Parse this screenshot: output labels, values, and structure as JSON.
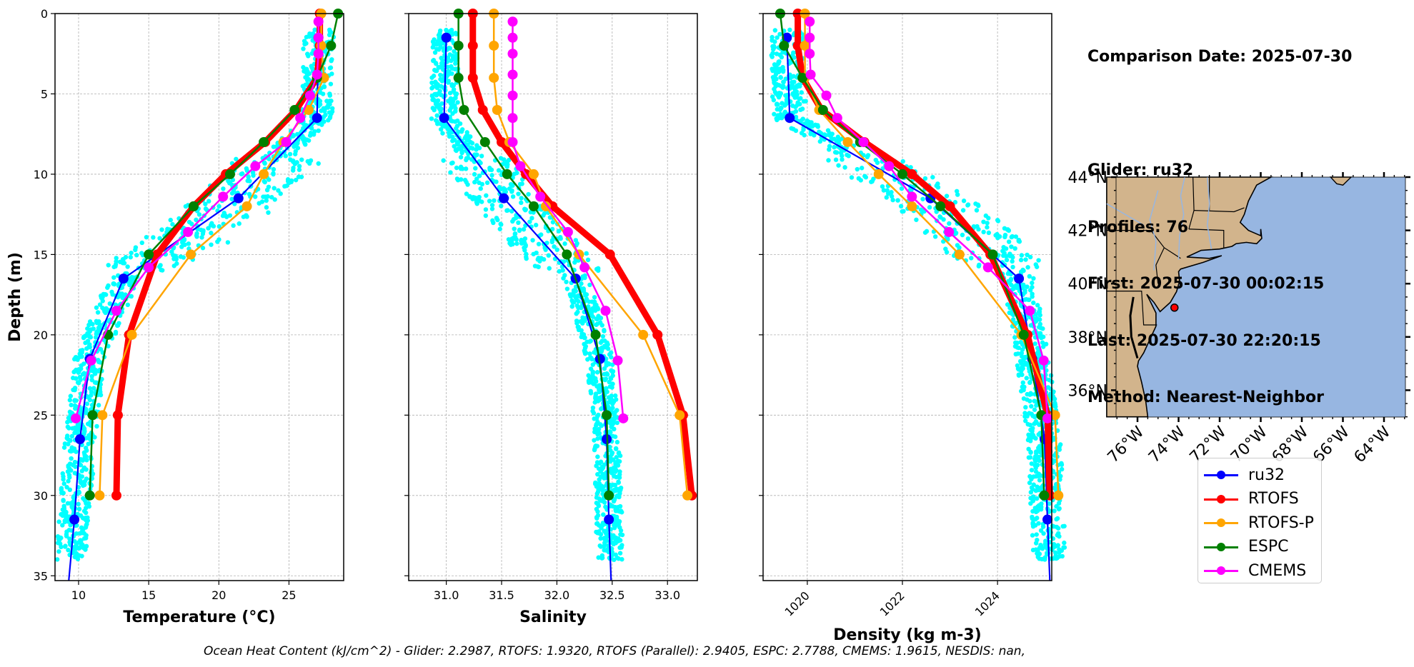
{
  "info": {
    "lines": [
      "Comparison Date: 2025-07-30",
      "",
      "Glider: ru32",
      "Profiles: 76",
      "First: 2025-07-30 00:02:15",
      "Last: 2025-07-30 22:20:15",
      "Method: Nearest-Neighbor"
    ]
  },
  "footer": "Ocean Heat Content (kJ/cm^2) - Glider: 2.2987,  RTOFS: 1.9320,  RTOFS (Parallel): 2.9405,  ESPC: 2.7788,  CMEMS: 1.9615,  NESDIS: nan,",
  "legend": [
    {
      "name": "ru32",
      "color": "#0000ff"
    },
    {
      "name": "RTOFS",
      "color": "#ff0000"
    },
    {
      "name": "RTOFS-P",
      "color": "#ffa500"
    },
    {
      "name": "ESPC",
      "color": "#008000"
    },
    {
      "name": "CMEMS",
      "color": "#ff00ff"
    }
  ],
  "chart_data": [
    {
      "type": "line",
      "title": "",
      "xlabel": "Temperature (°C)",
      "ylabel": "Depth (m)",
      "xlim": [
        8.32,
        28.9
      ],
      "ylim": [
        35.3,
        0
      ],
      "xticks": [
        10,
        15,
        20,
        25
      ],
      "yticks": [
        0,
        5,
        10,
        15,
        20,
        25,
        30,
        35
      ],
      "grid": true,
      "scatter_color": "#00ffff",
      "series": [
        {
          "name": "ru32",
          "color": "#0000ff",
          "depth": [
            1.5,
            6.5,
            11.5,
            16.5,
            21.5,
            26.5,
            31.5,
            35.3
          ],
          "values": [
            27.1,
            27.0,
            21.4,
            13.2,
            10.8,
            10.1,
            9.7,
            9.3
          ],
          "markers_count": 7
        },
        {
          "name": "RTOFS",
          "color": "#ff0000",
          "depth": [
            0,
            2,
            4,
            6,
            8,
            10,
            12,
            15,
            20,
            25,
            30
          ],
          "values": [
            27.2,
            27.2,
            27.0,
            25.5,
            23.3,
            20.5,
            18.2,
            15.6,
            13.6,
            12.8,
            12.7
          ]
        },
        {
          "name": "RTOFS-P",
          "color": "#ffa500",
          "depth": [
            0,
            2,
            4,
            6,
            8,
            10,
            12,
            15,
            20,
            25,
            30
          ],
          "values": [
            27.3,
            27.3,
            27.5,
            26.4,
            24.6,
            23.2,
            22.0,
            18.0,
            13.8,
            11.7,
            11.5
          ]
        },
        {
          "name": "ESPC",
          "color": "#008000",
          "depth": [
            0,
            2,
            4,
            6,
            8,
            10,
            12,
            15,
            20,
            25,
            30
          ],
          "values": [
            28.5,
            28.0,
            27.0,
            25.4,
            23.2,
            20.8,
            18.2,
            15.0,
            12.1,
            11.0,
            10.8
          ]
        },
        {
          "name": "CMEMS",
          "color": "#ff00ff",
          "depth": [
            0.5,
            1.5,
            2.5,
            3.8,
            5.1,
            6.5,
            8.0,
            9.5,
            11.4,
            13.6,
            15.8,
            18.5,
            21.6,
            25.2
          ],
          "values": [
            27.1,
            27.1,
            27.1,
            27.0,
            26.5,
            25.8,
            24.8,
            22.6,
            20.3,
            17.8,
            15.0,
            12.7,
            10.9,
            9.8
          ]
        }
      ],
      "glider_cloud": {
        "description": "individual glider observations",
        "depth_min": 1,
        "depth_max": 34
      }
    },
    {
      "type": "line",
      "title": "",
      "xlabel": "Salinity",
      "ylabel": "",
      "xlim": [
        30.66,
        33.27
      ],
      "ylim": [
        35.3,
        0
      ],
      "xticks": [
        31.0,
        31.5,
        32.0,
        32.5,
        33.0
      ],
      "yticks": [
        0,
        5,
        10,
        15,
        20,
        25,
        30,
        35
      ],
      "grid": true,
      "series": [
        {
          "name": "ru32",
          "color": "#0000ff",
          "depth": [
            1.5,
            6.5,
            11.5,
            16.5,
            21.5,
            26.5,
            31.5,
            35.3
          ],
          "values": [
            31.0,
            30.98,
            31.52,
            32.17,
            32.39,
            32.45,
            32.47,
            32.49
          ],
          "markers_count": 7
        },
        {
          "name": "RTOFS",
          "color": "#ff0000",
          "depth": [
            0,
            2,
            4,
            6,
            8,
            10,
            12,
            15,
            20,
            25,
            30
          ],
          "values": [
            31.24,
            31.24,
            31.24,
            31.33,
            31.5,
            31.72,
            31.96,
            32.48,
            32.91,
            33.14,
            33.22
          ]
        },
        {
          "name": "RTOFS-P",
          "color": "#ffa500",
          "depth": [
            0,
            2,
            4,
            6,
            8,
            10,
            12,
            15,
            20,
            25,
            30
          ],
          "values": [
            31.43,
            31.43,
            31.43,
            31.46,
            31.57,
            31.79,
            31.9,
            32.2,
            32.78,
            33.11,
            33.18
          ]
        },
        {
          "name": "ESPC",
          "color": "#008000",
          "depth": [
            0,
            2,
            4,
            6,
            8,
            10,
            12,
            15,
            20,
            25,
            30
          ],
          "values": [
            31.11,
            31.11,
            31.11,
            31.16,
            31.35,
            31.55,
            31.79,
            32.09,
            32.35,
            32.45,
            32.47
          ]
        },
        {
          "name": "CMEMS",
          "color": "#ff00ff",
          "depth": [
            0.5,
            1.5,
            2.5,
            3.8,
            5.1,
            6.5,
            8.0,
            9.5,
            11.4,
            13.6,
            15.8,
            18.5,
            21.6,
            25.2
          ],
          "values": [
            31.6,
            31.6,
            31.6,
            31.6,
            31.6,
            31.6,
            31.6,
            31.67,
            31.85,
            32.1,
            32.25,
            32.44,
            32.55,
            32.6
          ]
        }
      ]
    },
    {
      "type": "line",
      "title": "",
      "xlabel": "Density (kg m-3)",
      "ylabel": "",
      "xlim": [
        1019.07,
        1025.14
      ],
      "ylim": [
        35.3,
        0
      ],
      "xticks": [
        1020,
        1022,
        1024
      ],
      "yticks": [
        0,
        5,
        10,
        15,
        20,
        25,
        30,
        35
      ],
      "grid": true,
      "series": [
        {
          "name": "ru32",
          "color": "#0000ff",
          "depth": [
            1.5,
            6.5,
            11.5,
            16.5,
            21.5,
            26.5,
            31.5,
            35.3
          ],
          "values": [
            1019.57,
            1019.63,
            1022.59,
            1024.45,
            1024.73,
            1024.99,
            1025.05,
            1025.1
          ],
          "markers_count": 7
        },
        {
          "name": "RTOFS",
          "color": "#ff0000",
          "depth": [
            0,
            2,
            4,
            6,
            8,
            10,
            12,
            15,
            20,
            25,
            30
          ],
          "values": [
            1019.8,
            1019.8,
            1019.9,
            1020.3,
            1021.2,
            1022.2,
            1023.0,
            1023.85,
            1024.63,
            1025.05,
            1025.1
          ]
        },
        {
          "name": "RTOFS-P",
          "color": "#ffa500",
          "depth": [
            0,
            2,
            4,
            6,
            8,
            10,
            12,
            15,
            20,
            25,
            30
          ],
          "values": [
            1019.95,
            1019.95,
            1019.95,
            1020.25,
            1020.85,
            1021.5,
            1022.2,
            1023.2,
            1024.5,
            1025.21,
            1025.28
          ]
        },
        {
          "name": "ESPC",
          "color": "#008000",
          "depth": [
            0,
            2,
            4,
            6,
            8,
            10,
            12,
            15,
            20,
            25,
            30
          ],
          "values": [
            1019.43,
            1019.51,
            1019.9,
            1020.33,
            1021.11,
            1022.0,
            1022.8,
            1023.9,
            1024.55,
            1024.92,
            1024.98
          ]
        },
        {
          "name": "CMEMS",
          "color": "#ff00ff",
          "depth": [
            0.5,
            1.5,
            2.5,
            3.8,
            5.1,
            6.5,
            8.0,
            9.5,
            11.4,
            13.6,
            15.8,
            18.5,
            21.6,
            25.2
          ],
          "values": [
            1020.05,
            1020.05,
            1020.05,
            1020.07,
            1020.4,
            1020.63,
            1021.18,
            1021.72,
            1022.2,
            1022.98,
            1023.8,
            1024.68,
            1024.97,
            1025.05
          ]
        }
      ]
    },
    {
      "type": "scatter",
      "title": "",
      "xlabel": "",
      "ylabel": "",
      "lon_range": [
        -77.5,
        -63.0
      ],
      "lat_range": [
        35.0,
        44.0
      ],
      "xticks": [
        "76°W",
        "74°W",
        "72°W",
        "70°W",
        "68°W",
        "66°W",
        "64°W"
      ],
      "xtick_values": [
        -76,
        -74,
        -72,
        -70,
        -68,
        -66,
        -64
      ],
      "yticks": [
        "44°N",
        "42°N",
        "40°N",
        "38°N",
        "36°N"
      ],
      "ytick_values": [
        44,
        42,
        40,
        38,
        36
      ],
      "land_color": "#d2b48c",
      "ocean_color": "#97b6e1",
      "points": [
        {
          "lon": -74.2,
          "lat": 39.1,
          "color": "#ff0000"
        }
      ]
    }
  ]
}
